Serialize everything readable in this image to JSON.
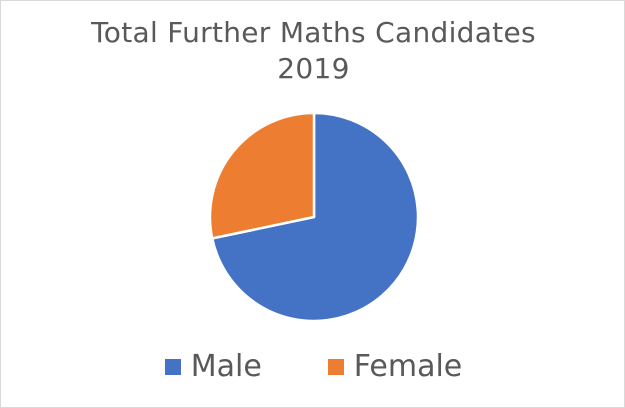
{
  "chart_data": {
    "type": "pie",
    "title": "Total Further Maths Candidates 2019",
    "title_lines": [
      "Total Further Maths Candidates",
      "2019"
    ],
    "categories": [
      "Male",
      "Female"
    ],
    "values": [
      71.7,
      28.3
    ],
    "value_unit": "percent (estimated from slice angles)",
    "colors": [
      "#4472C4",
      "#ED7D31"
    ],
    "start_angle_deg": 0,
    "direction": "clockwise",
    "legend": {
      "position": "bottom",
      "entries": [
        "Male",
        "Female"
      ]
    },
    "data_labels": false
  },
  "legend": {
    "items": [
      {
        "label": "Male",
        "color": "#4472C4"
      },
      {
        "label": "Female",
        "color": "#ED7D31"
      }
    ]
  }
}
